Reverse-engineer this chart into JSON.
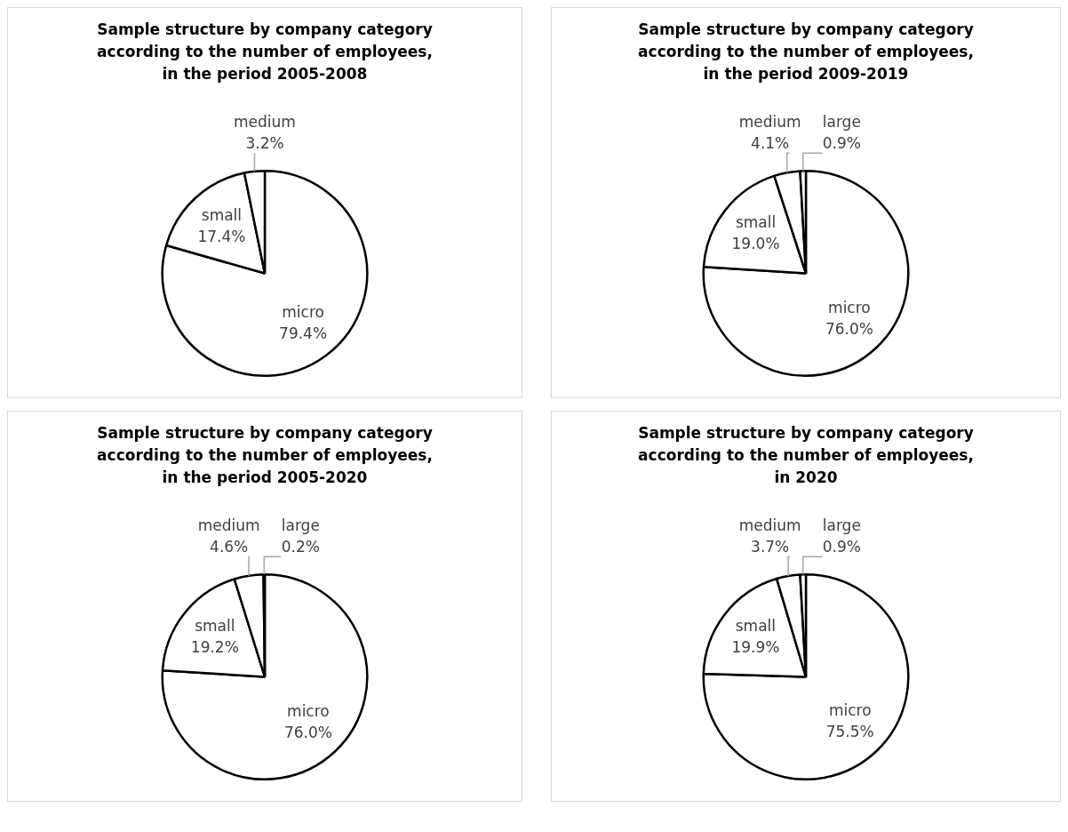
{
  "chart_data": [
    {
      "type": "pie",
      "title": "Sample structure by company category according to the number of employees, in the period 2005-2008",
      "categories": [
        "micro",
        "small",
        "medium"
      ],
      "values": [
        79.4,
        17.4,
        3.2
      ],
      "value_labels": [
        "79.4%",
        "17.4%",
        "3.2%"
      ],
      "colors": [
        "#ffffff",
        "#ffffff",
        "#ffffff"
      ],
      "legend": false
    },
    {
      "type": "pie",
      "title": "Sample structure by company category according to the number of employees, in the period 2009-2019",
      "categories": [
        "micro",
        "small",
        "medium",
        "large"
      ],
      "values": [
        76.0,
        19.0,
        4.1,
        0.9
      ],
      "value_labels": [
        "76.0%",
        "19.0%",
        "4.1%",
        "0.9%"
      ],
      "colors": [
        "#ffffff",
        "#ffffff",
        "#ffffff",
        "#ffffff"
      ],
      "legend": false
    },
    {
      "type": "pie",
      "title": "Sample structure by company category  according to the number of employees, in the period 2005-2020",
      "categories": [
        "micro",
        "small",
        "medium",
        "large"
      ],
      "values": [
        76.0,
        19.2,
        4.6,
        0.2
      ],
      "value_labels": [
        "76.0%",
        "19.2%",
        "4.6%",
        "0.2%"
      ],
      "colors": [
        "#ffffff",
        "#ffffff",
        "#ffffff",
        "#ffffff"
      ],
      "legend": false
    },
    {
      "type": "pie",
      "title": "Sample structure by company category according to the number of employees, in 2020",
      "categories": [
        "micro",
        "small",
        "medium",
        "large"
      ],
      "values": [
        75.5,
        19.9,
        3.7,
        0.9
      ],
      "value_labels": [
        "75.5%",
        "19.9%",
        "3.7%",
        "0.9%"
      ],
      "colors": [
        "#ffffff",
        "#ffffff",
        "#ffffff",
        "#ffffff"
      ],
      "legend": false
    }
  ]
}
